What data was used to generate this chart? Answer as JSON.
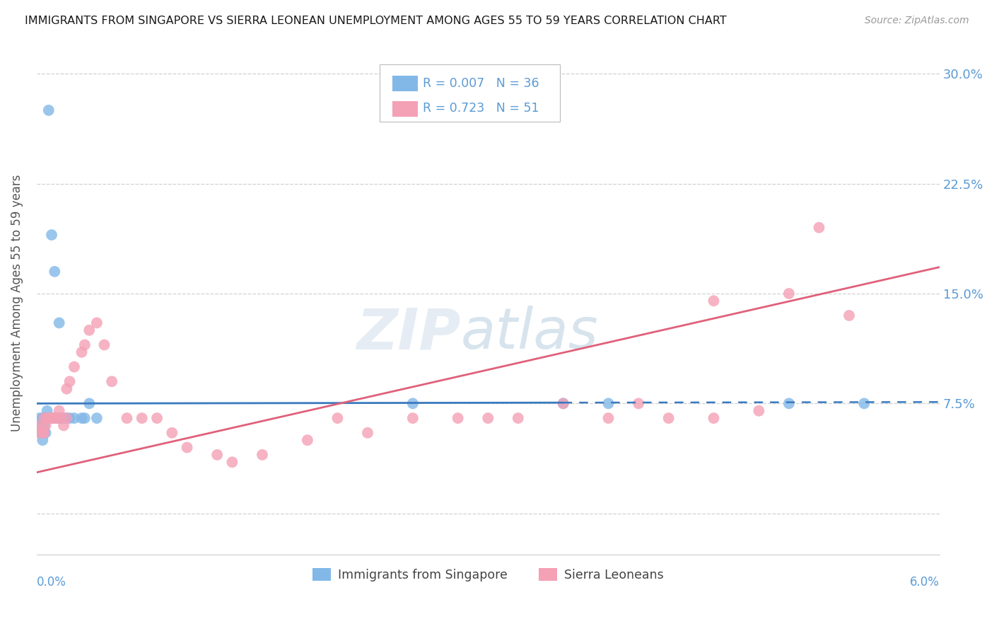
{
  "title": "IMMIGRANTS FROM SINGAPORE VS SIERRA LEONEAN UNEMPLOYMENT AMONG AGES 55 TO 59 YEARS CORRELATION CHART",
  "source": "Source: ZipAtlas.com",
  "ylabel": "Unemployment Among Ages 55 to 59 years",
  "xlim": [
    0.0,
    0.06
  ],
  "ylim": [
    -0.028,
    0.315
  ],
  "ytick_vals": [
    0.0,
    0.075,
    0.15,
    0.225,
    0.3
  ],
  "ytick_labels": [
    "",
    "7.5%",
    "15.0%",
    "22.5%",
    "30.0%"
  ],
  "legend_label1": "Immigrants from Singapore",
  "legend_label2": "Sierra Leoneans",
  "R1": "0.007",
  "N1": "36",
  "R2": "0.723",
  "N2": "51",
  "color_blue": "#82b8e8",
  "color_pink": "#f4a0b5",
  "color_line_blue": "#3a7abf",
  "color_line_pink": "#e0607a",
  "color_axis_text": "#5b9bd5",
  "background_color": "#ffffff",
  "watermark": "ZIPatlas",
  "sg_x": [
    0.0002,
    0.0003,
    0.0003,
    0.0004,
    0.0004,
    0.0005,
    0.0005,
    0.0005,
    0.0006,
    0.0006,
    0.0007,
    0.0007,
    0.0008,
    0.0008,
    0.0009,
    0.001,
    0.001,
    0.0011,
    0.0012,
    0.0013,
    0.0014,
    0.0015,
    0.0016,
    0.0018,
    0.002,
    0.0022,
    0.0025,
    0.003,
    0.0032,
    0.0035,
    0.004,
    0.025,
    0.035,
    0.038,
    0.05,
    0.055
  ],
  "sg_y": [
    0.065,
    0.06,
    0.055,
    0.065,
    0.05,
    0.065,
    0.06,
    0.055,
    0.065,
    0.055,
    0.07,
    0.065,
    0.275,
    0.065,
    0.065,
    0.19,
    0.065,
    0.065,
    0.165,
    0.065,
    0.065,
    0.13,
    0.065,
    0.065,
    0.065,
    0.065,
    0.065,
    0.065,
    0.065,
    0.075,
    0.065,
    0.075,
    0.075,
    0.075,
    0.075,
    0.075
  ],
  "sl_x": [
    0.0002,
    0.0003,
    0.0004,
    0.0005,
    0.0005,
    0.0006,
    0.0007,
    0.0008,
    0.0009,
    0.001,
    0.0011,
    0.0012,
    0.0013,
    0.0015,
    0.0016,
    0.0018,
    0.002,
    0.002,
    0.0022,
    0.0025,
    0.003,
    0.0032,
    0.0035,
    0.004,
    0.0045,
    0.005,
    0.006,
    0.007,
    0.008,
    0.009,
    0.01,
    0.012,
    0.013,
    0.015,
    0.018,
    0.02,
    0.022,
    0.025,
    0.028,
    0.03,
    0.032,
    0.035,
    0.038,
    0.04,
    0.042,
    0.045,
    0.048,
    0.05,
    0.052,
    0.054,
    0.045
  ],
  "sl_y": [
    0.055,
    0.06,
    0.055,
    0.065,
    0.055,
    0.06,
    0.065,
    0.065,
    0.065,
    0.065,
    0.065,
    0.065,
    0.065,
    0.07,
    0.065,
    0.06,
    0.065,
    0.085,
    0.09,
    0.1,
    0.11,
    0.115,
    0.125,
    0.13,
    0.115,
    0.09,
    0.065,
    0.065,
    0.065,
    0.055,
    0.045,
    0.04,
    0.035,
    0.04,
    0.05,
    0.065,
    0.055,
    0.065,
    0.065,
    0.065,
    0.065,
    0.075,
    0.065,
    0.075,
    0.065,
    0.065,
    0.07,
    0.15,
    0.195,
    0.135,
    0.145
  ],
  "blue_line_solid_end": 0.035,
  "blue_line_y0": 0.075,
  "blue_line_y1": 0.076,
  "pink_line_y0": 0.028,
  "pink_line_y1": 0.168
}
